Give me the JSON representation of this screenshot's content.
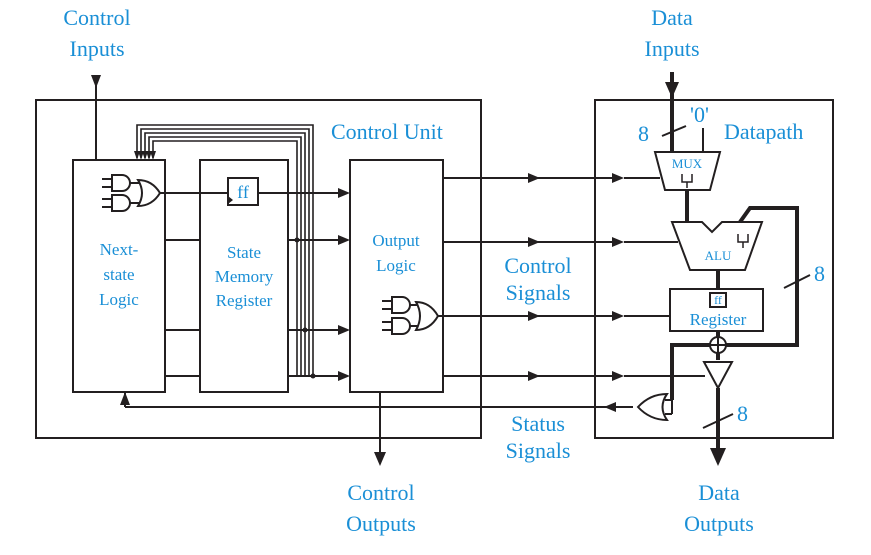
{
  "labels": {
    "control_inputs_1": "Control",
    "control_inputs_2": "Inputs",
    "data_inputs_1": "Data",
    "data_inputs_2": "Inputs",
    "control_unit": "Control Unit",
    "datapath": "Datapath",
    "next_state_1": "Next-",
    "next_state_2": "state",
    "next_state_3": "Logic",
    "ff": "ff",
    "state_mem_1": "State",
    "state_mem_2": "Memory",
    "state_mem_3": "Register",
    "output_logic_1": "Output",
    "output_logic_2": "Logic",
    "control_signals_1": "Control",
    "control_signals_2": "Signals",
    "status_signals_1": "Status",
    "status_signals_2": "Signals",
    "control_outputs_1": "Control",
    "control_outputs_2": "Outputs",
    "data_outputs_1": "Data",
    "data_outputs_2": "Outputs",
    "zero_const": "'0'",
    "mux": "MUX",
    "alu": "ALU",
    "register_ff": "ff",
    "register": "Register",
    "bus_width_top": "8",
    "bus_width_right": "8",
    "bus_width_bottom": "8"
  },
  "colors": {
    "label_blue": "#1a8fd6",
    "line_black": "#231f20"
  }
}
